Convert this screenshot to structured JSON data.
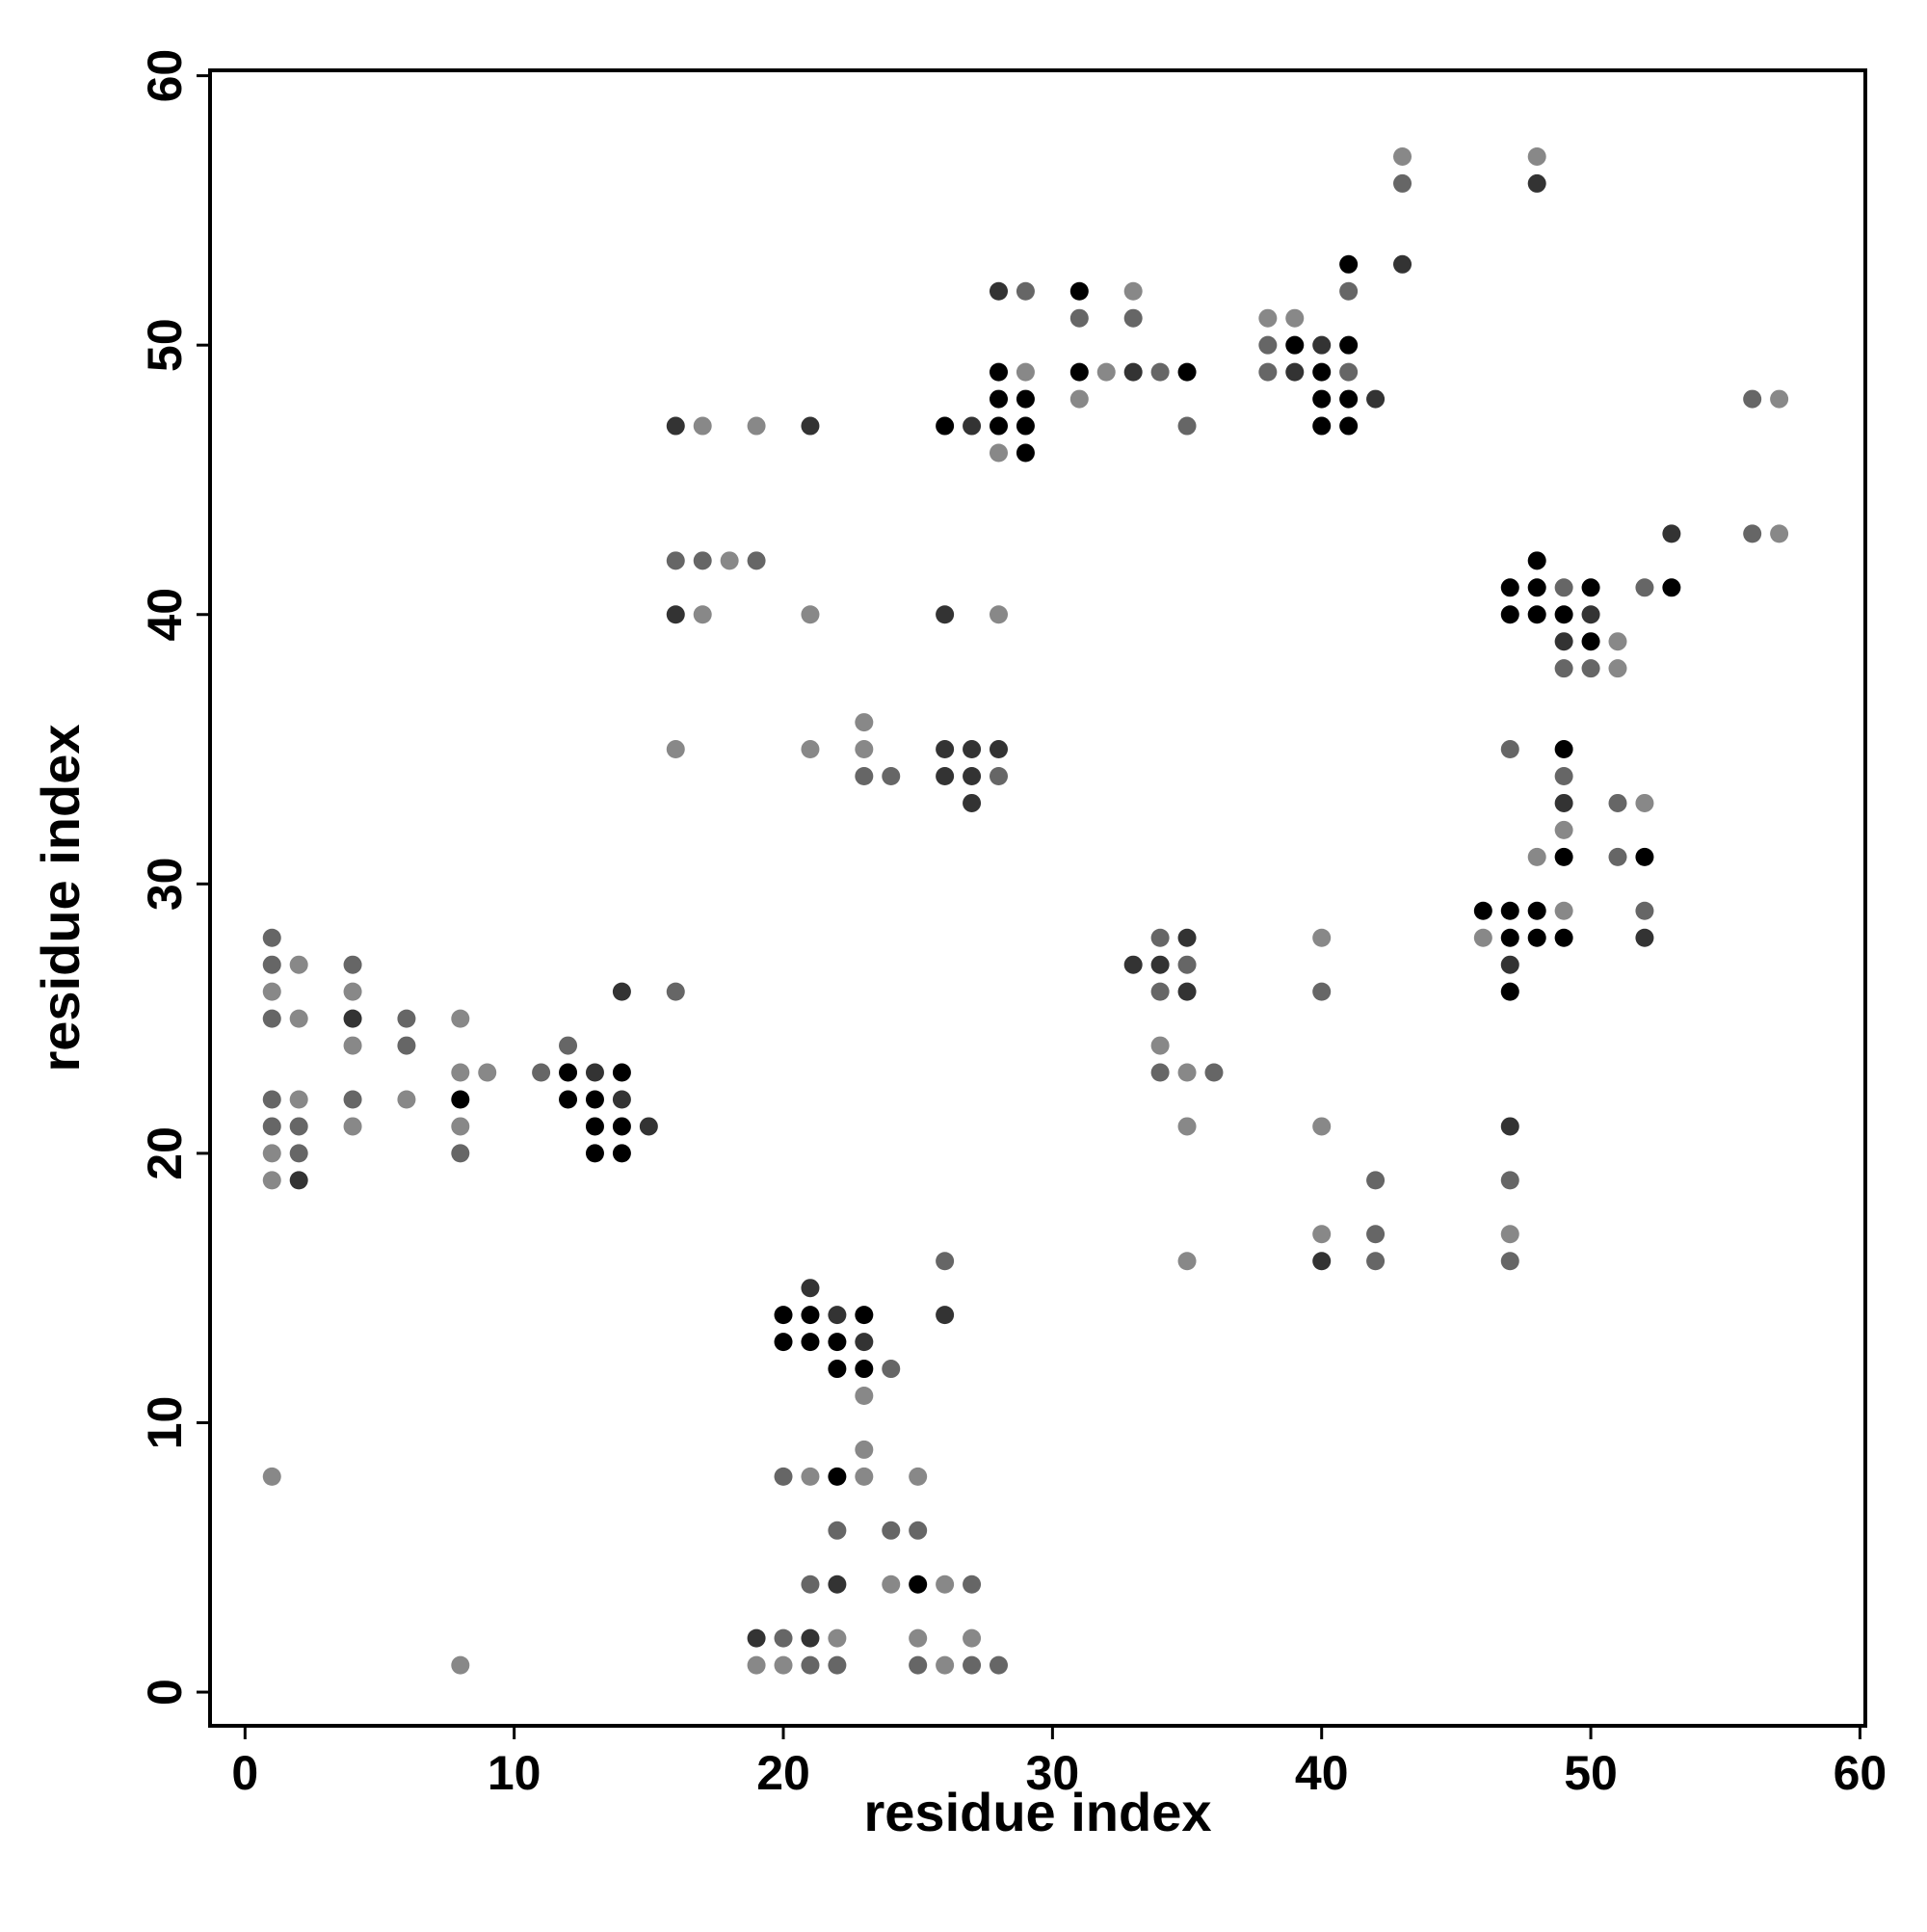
{
  "chart_data": {
    "type": "scatter",
    "xlabel": "residue index",
    "ylabel": "residue index",
    "xlim": [
      -1.3,
      60.2
    ],
    "ylim": [
      -1.25,
      60.2
    ],
    "xticks": [
      0,
      10,
      20,
      30,
      40,
      50,
      60
    ],
    "yticks": [
      0,
      10,
      20,
      30,
      40,
      50,
      60
    ],
    "series": [
      {
        "color": "#000000",
        "x": [
          8,
          12,
          12,
          13,
          13,
          13,
          14,
          14,
          14,
          20,
          20,
          21,
          21,
          22,
          22,
          22,
          23,
          23,
          25,
          26,
          28,
          28,
          28,
          29,
          29,
          29,
          31,
          31,
          35,
          39,
          40,
          40,
          40,
          41,
          41,
          41,
          41,
          46,
          47,
          47,
          47,
          47,
          47,
          48,
          48,
          48,
          48,
          48,
          49,
          49,
          49,
          49,
          50,
          50,
          52,
          53
        ],
        "y": [
          22,
          23,
          22,
          22,
          21,
          20,
          23,
          21,
          20,
          14,
          13,
          14,
          13,
          13,
          12,
          8,
          14,
          12,
          4,
          47,
          49,
          48,
          47,
          48,
          47,
          46,
          52,
          49,
          49,
          50,
          49,
          48,
          47,
          53,
          50,
          48,
          47,
          29,
          41,
          40,
          29,
          28,
          26,
          42,
          41,
          40,
          29,
          28,
          40,
          35,
          31,
          28,
          41,
          39,
          31,
          41
        ]
      },
      {
        "color": "#333333",
        "x": [
          2,
          4,
          13,
          14,
          14,
          15,
          16,
          16,
          19,
          21,
          21,
          21,
          22,
          22,
          23,
          26,
          26,
          26,
          26,
          27,
          27,
          27,
          27,
          28,
          28,
          33,
          33,
          34,
          35,
          35,
          39,
          40,
          40,
          42,
          43,
          47,
          47,
          48,
          49,
          49,
          50,
          52,
          53
        ],
        "y": [
          19,
          25,
          23,
          26,
          22,
          21,
          47,
          40,
          2,
          47,
          15,
          2,
          14,
          4,
          13,
          40,
          35,
          34,
          14,
          47,
          35,
          34,
          33,
          52,
          35,
          49,
          27,
          27,
          28,
          26,
          49,
          50,
          16,
          48,
          53,
          27,
          21,
          56,
          39,
          33,
          40,
          28,
          43
        ]
      },
      {
        "color": "#666666",
        "x": [
          1,
          1,
          1,
          1,
          1,
          2,
          2,
          4,
          4,
          6,
          6,
          8,
          11,
          12,
          16,
          16,
          17,
          19,
          20,
          20,
          21,
          21,
          22,
          22,
          23,
          24,
          24,
          24,
          25,
          25,
          26,
          27,
          27,
          28,
          28,
          29,
          31,
          33,
          34,
          34,
          34,
          34,
          35,
          35,
          36,
          38,
          38,
          40,
          41,
          41,
          42,
          42,
          42,
          43,
          47,
          47,
          47,
          49,
          49,
          49,
          50,
          51,
          51,
          52,
          52,
          56,
          56
        ],
        "y": [
          28,
          27,
          25,
          22,
          21,
          21,
          20,
          27,
          22,
          25,
          24,
          20,
          23,
          24,
          42,
          26,
          42,
          42,
          8,
          2,
          4,
          1,
          6,
          1,
          34,
          34,
          12,
          6,
          6,
          1,
          16,
          4,
          1,
          34,
          1,
          52,
          51,
          51,
          49,
          28,
          26,
          23,
          47,
          27,
          23,
          50,
          49,
          26,
          52,
          49,
          19,
          17,
          16,
          56,
          35,
          19,
          16,
          41,
          38,
          34,
          38,
          33,
          31,
          41,
          29,
          48,
          43
        ]
      },
      {
        "color": "#888888",
        "x": [
          1,
          1,
          1,
          1,
          2,
          2,
          2,
          4,
          4,
          4,
          6,
          8,
          8,
          8,
          8,
          9,
          16,
          17,
          17,
          18,
          19,
          19,
          20,
          21,
          21,
          21,
          22,
          23,
          23,
          23,
          23,
          23,
          24,
          25,
          25,
          26,
          26,
          27,
          28,
          28,
          29,
          31,
          32,
          33,
          34,
          35,
          35,
          35,
          38,
          39,
          40,
          40,
          40,
          43,
          46,
          47,
          48,
          48,
          49,
          49,
          51,
          51,
          52,
          57,
          57
        ],
        "y": [
          26,
          20,
          19,
          8,
          27,
          25,
          22,
          26,
          24,
          21,
          22,
          25,
          23,
          21,
          1,
          23,
          35,
          47,
          40,
          42,
          47,
          1,
          1,
          40,
          35,
          8,
          2,
          36,
          35,
          11,
          9,
          8,
          4,
          8,
          2,
          4,
          1,
          2,
          46,
          40,
          49,
          48,
          49,
          52,
          24,
          23,
          21,
          16,
          51,
          51,
          28,
          21,
          17,
          57,
          28,
          17,
          57,
          31,
          32,
          29,
          39,
          38,
          33,
          48,
          43
        ]
      }
    ]
  }
}
